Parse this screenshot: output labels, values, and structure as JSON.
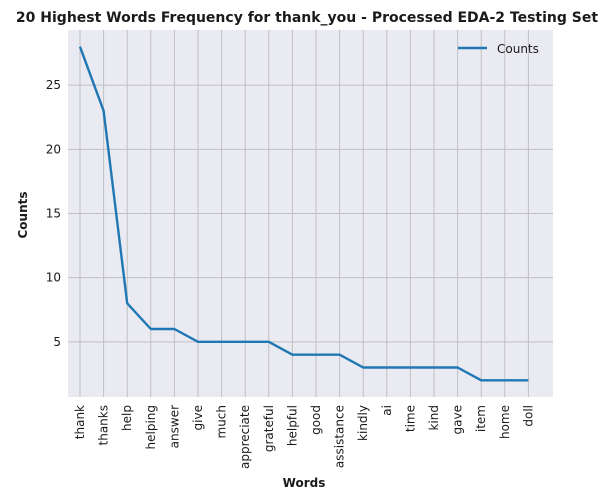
{
  "chart_data": {
    "type": "line",
    "title": "20 Highest Words Frequency for thank_you - Processed EDA-2 Testing Set",
    "xlabel": "Words",
    "ylabel": "Counts",
    "categories": [
      "thank",
      "thanks",
      "help",
      "helping",
      "answer",
      "give",
      "much",
      "appreciate",
      "grateful",
      "helpful",
      "good",
      "assistance",
      "kindly",
      "ai",
      "time",
      "kind",
      "gave",
      "item",
      "home",
      "doll"
    ],
    "series": [
      {
        "name": "Counts",
        "values": [
          28,
          23,
          8,
          6,
          6,
          5,
          5,
          5,
          5,
          4,
          4,
          4,
          3,
          3,
          3,
          3,
          3,
          2,
          2,
          2
        ],
        "color": "#1f77b4"
      }
    ],
    "ylim": [
      0.7,
      29.3
    ],
    "yticks": [
      5,
      10,
      15,
      20,
      25
    ],
    "grid": true,
    "legend_position": "top-right",
    "colors": {
      "background": "#eaeaf2",
      "grid": "#c0c0c0"
    }
  }
}
